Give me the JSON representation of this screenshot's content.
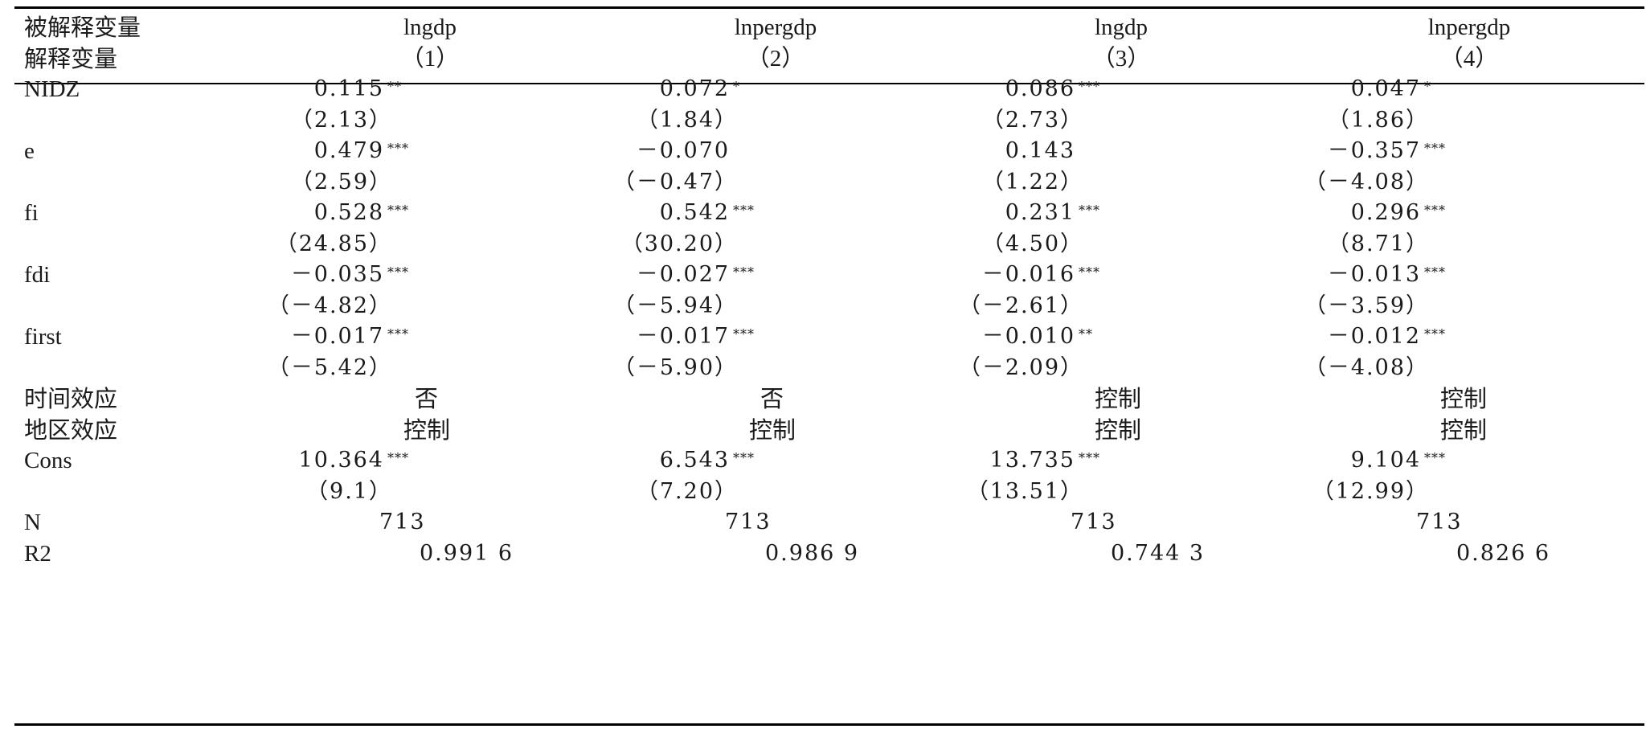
{
  "header": {
    "dep_var_label": "被解释变量",
    "exp_var_label": "解释变量",
    "dep_vars": [
      "lngdp",
      "lnpergdp",
      "lngdp",
      "lnpergdp"
    ],
    "model_nums": [
      "（1）",
      "（2）",
      "（3）",
      "（4）"
    ]
  },
  "rows": [
    {
      "label": "NIDZ",
      "coefs": [
        {
          "v": "0.115",
          "s": "**"
        },
        {
          "v": "0.072",
          "s": "*"
        },
        {
          "v": "0.086",
          "s": "***"
        },
        {
          "v": "0.047",
          "s": "*"
        }
      ],
      "tstats": [
        "（2.13）",
        "（1.84）",
        "（2.73）",
        "（1.86）"
      ]
    },
    {
      "label": "e",
      "coefs": [
        {
          "v": "0.479",
          "s": "***"
        },
        {
          "v": "－0.070",
          "s": ""
        },
        {
          "v": "0.143",
          "s": ""
        },
        {
          "v": "－0.357",
          "s": "***"
        }
      ],
      "tstats": [
        "（2.59）",
        "（－0.47）",
        "（1.22）",
        "（－4.08）"
      ]
    },
    {
      "label": "fi",
      "coefs": [
        {
          "v": "0.528",
          "s": "***"
        },
        {
          "v": "0.542",
          "s": "***"
        },
        {
          "v": "0.231",
          "s": "***"
        },
        {
          "v": "0.296",
          "s": "***"
        }
      ],
      "tstats": [
        "（24.85）",
        "（30.20）",
        "（4.50）",
        "（8.71）"
      ]
    },
    {
      "label": "fdi",
      "coefs": [
        {
          "v": "－0.035",
          "s": "***"
        },
        {
          "v": "－0.027",
          "s": "***"
        },
        {
          "v": "－0.016",
          "s": "***"
        },
        {
          "v": "－0.013",
          "s": "***"
        }
      ],
      "tstats": [
        "（－4.82）",
        "（－5.94）",
        "（－2.61）",
        "（－3.59）"
      ]
    },
    {
      "label": "first",
      "coefs": [
        {
          "v": "－0.017",
          "s": "***"
        },
        {
          "v": "－0.017",
          "s": "***"
        },
        {
          "v": "－0.010",
          "s": "**"
        },
        {
          "v": "－0.012",
          "s": "***"
        }
      ],
      "tstats": [
        "（－5.42）",
        "（－5.90）",
        "（－2.09）",
        "（－4.08）"
      ]
    }
  ],
  "effects": [
    {
      "label": "时间效应",
      "values": [
        "否",
        "否",
        "控制",
        "控制"
      ]
    },
    {
      "label": "地区效应",
      "values": [
        "控制",
        "控制",
        "控制",
        "控制"
      ]
    }
  ],
  "cons": {
    "label": "Cons",
    "coefs": [
      {
        "v": "10.364",
        "s": "***"
      },
      {
        "v": "6.543",
        "s": "***"
      },
      {
        "v": "13.735",
        "s": "***"
      },
      {
        "v": "9.104",
        "s": "***"
      }
    ],
    "tstats": [
      "（9.1）",
      "（7.20）",
      "（13.51）",
      "（12.99）"
    ]
  },
  "n": {
    "label": "N",
    "values": [
      "713",
      "713",
      "713",
      "713"
    ]
  },
  "r2": {
    "label": "R2",
    "values": [
      "0.991 6",
      "0.986 9",
      "0.744 3",
      "0.826 6"
    ]
  }
}
